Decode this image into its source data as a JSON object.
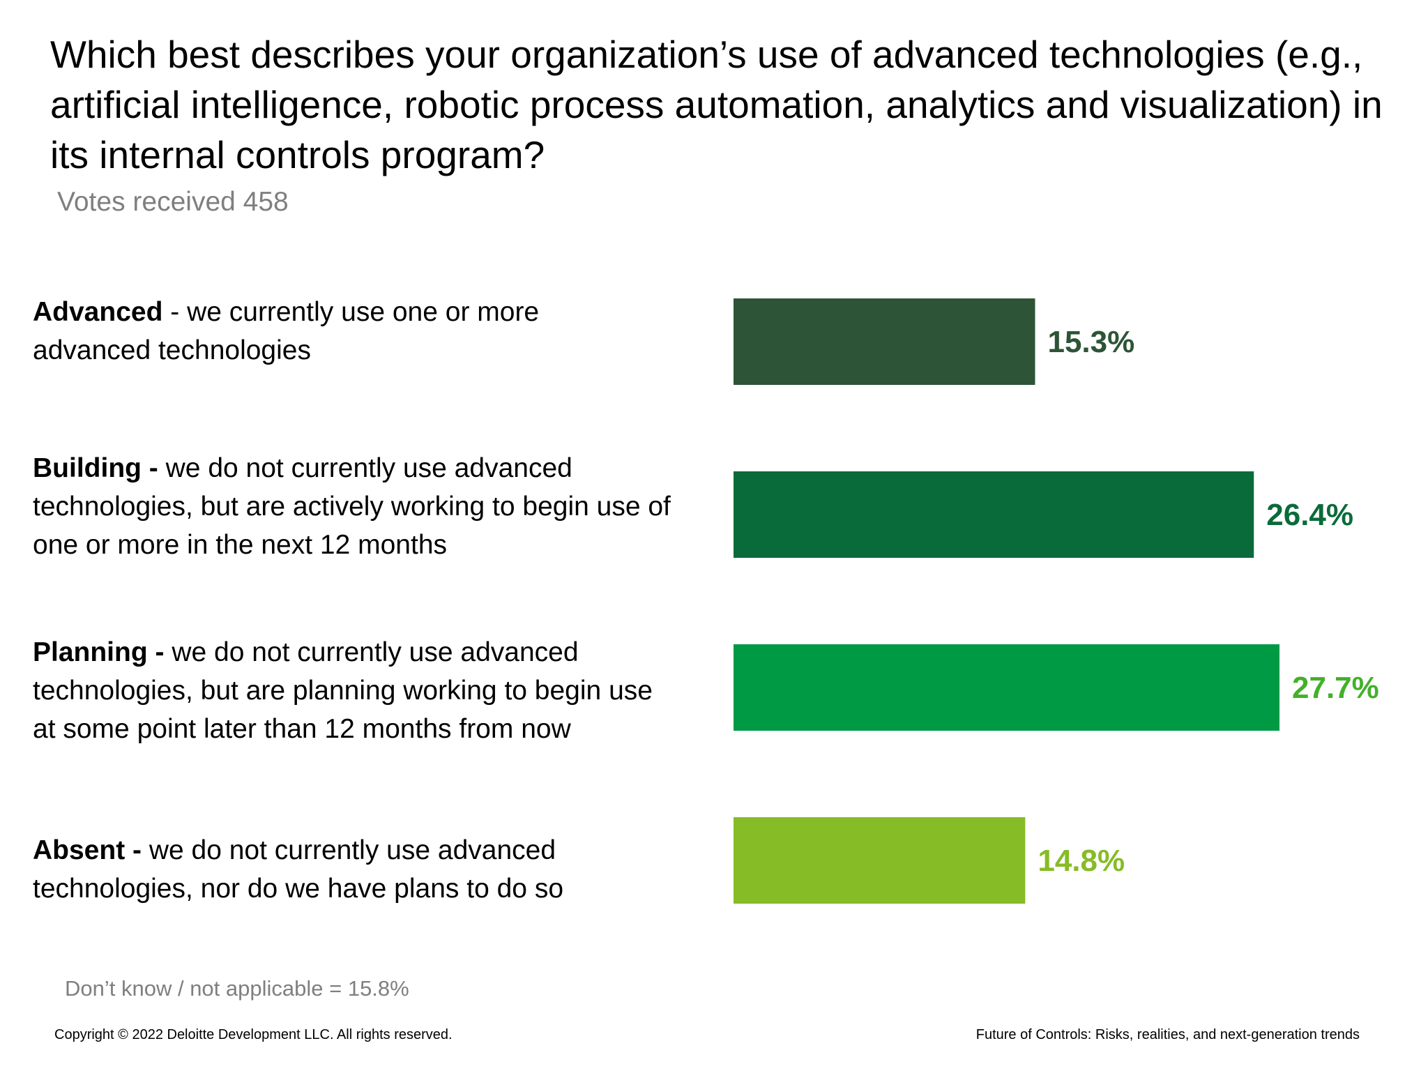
{
  "slide": {
    "title": "Which best describes your organization’s use of advanced technologies (e.g., artificial intelligence, robotic process automation, analytics and visualization) in its internal controls program?",
    "subtitle": "Votes received 458",
    "note": "Don’t know / not applicable = 15.8%",
    "footer_left": "Copyright © 2022 Deloitte Development LLC. All rights reserved.",
    "footer_right": "Future of Controls: Risks, realities, and next-generation trends"
  },
  "rows": [
    {
      "name": "Advanced",
      "prefix": "Advanced",
      "text": " - we currently use one or more advanced technologies"
    },
    {
      "name": "Building",
      "prefix": "Building -",
      "text": " we do not currently use advanced technologies, but are actively working to begin use of one or more in the next 12 months"
    },
    {
      "name": "Planning",
      "prefix": "Planning -",
      "text": " we do not currently use advanced technologies, but are planning working to begin use at some point later than 12 months from now"
    },
    {
      "name": "Absent",
      "prefix": "Absent -",
      "text": " we do not currently use advanced technologies, nor do we have plans to do so"
    }
  ],
  "chart_data": {
    "type": "bar",
    "orientation": "horizontal",
    "categories": [
      "Advanced",
      "Building",
      "Planning",
      "Absent"
    ],
    "values": [
      15.3,
      26.4,
      27.7,
      14.8
    ],
    "value_labels": [
      "15.3%",
      "26.4%",
      "27.7%",
      "14.8%"
    ],
    "unit": "%",
    "title": "Which best describes your organization’s use of advanced technologies (e.g., artificial intelligence, robotic process automation, analytics and visualization) in its internal controls program?",
    "xlabel": "",
    "ylabel": "",
    "xlim": [
      0,
      27.7
    ],
    "grid": false,
    "legend": "none",
    "colors": [
      "#2d5436",
      "#0a6b3a",
      "#009a44",
      "#86bc25"
    ],
    "label_colors": [
      "#2d5436",
      "#0a6b3a",
      "#43b02a",
      "#86bc25"
    ]
  }
}
